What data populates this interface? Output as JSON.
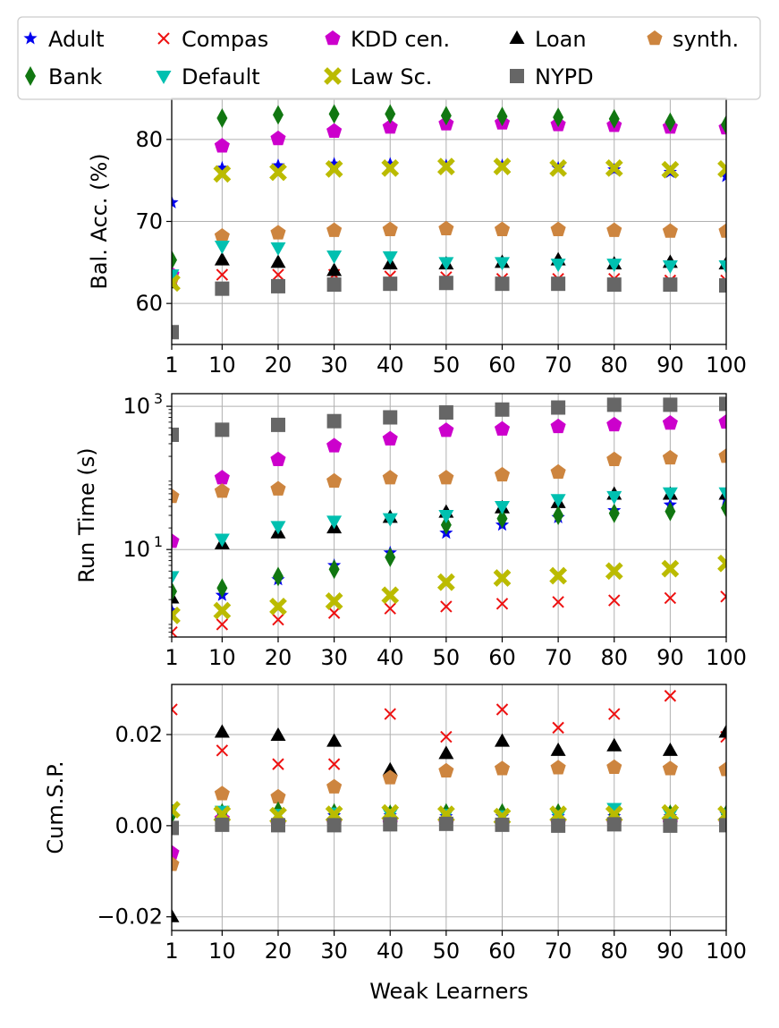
{
  "chart_data": {
    "type": "scatter",
    "x": [
      1,
      10,
      20,
      30,
      40,
      50,
      60,
      70,
      80,
      90,
      100
    ],
    "xticks": [
      "1",
      "10",
      "20",
      "30",
      "40",
      "50",
      "60",
      "70",
      "80",
      "90",
      "100"
    ],
    "xlabel": "Weak Learners",
    "legend": {
      "placement": "top",
      "entries": [
        {
          "key": "adult",
          "label": "Adult",
          "marker": "star",
          "color": "#0000ee"
        },
        {
          "key": "compas",
          "label": "Compas",
          "marker": "x",
          "color": "#ee1111"
        },
        {
          "key": "kdd",
          "label": "KDD cen.",
          "marker": "pentagon",
          "color": "#cc00cc"
        },
        {
          "key": "loan",
          "label": "Loan",
          "marker": "triangle-up",
          "color": "#000000"
        },
        {
          "key": "synth",
          "label": "synth.",
          "marker": "pentagon",
          "color": "#cd853f"
        },
        {
          "key": "bank",
          "label": "Bank",
          "marker": "thin-diamond",
          "color": "#117711"
        },
        {
          "key": "default",
          "label": "Default",
          "marker": "triangle-down",
          "color": "#00c0b0"
        },
        {
          "key": "law",
          "label": "Law Sc.",
          "marker": "x-filled",
          "color": "#bbbb00"
        },
        {
          "key": "nypd",
          "label": "NYPD",
          "marker": "square",
          "color": "#666666"
        }
      ]
    },
    "panels": [
      {
        "id": "acc",
        "ylabel": "Bal. Acc. (%)",
        "yscale": "linear",
        "ylim": [
          55,
          85
        ],
        "yticks": [
          {
            "v": 60,
            "label": "60"
          },
          {
            "v": 70,
            "label": "70"
          },
          {
            "v": 80,
            "label": "80"
          }
        ],
        "series": [
          {
            "key": "adult",
            "values": [
              72.3,
              76.5,
              76.8,
              77.0,
              77.0,
              76.8,
              76.8,
              76.5,
              76.3,
              76.0,
              75.5
            ]
          },
          {
            "key": "compas",
            "values": [
              62.8,
              63.5,
              63.5,
              63.5,
              63.3,
              63.2,
              63.0,
              63.0,
              63.0,
              62.8,
              62.8
            ]
          },
          {
            "key": "kdd",
            "values": [
              63.5,
              79.2,
              80.1,
              81.0,
              81.5,
              81.9,
              82.0,
              81.8,
              81.7,
              81.5,
              81.4
            ]
          },
          {
            "key": "loan",
            "values": [
              62.5,
              65.3,
              65.0,
              64.0,
              64.8,
              64.8,
              65.0,
              65.3,
              64.8,
              65.0,
              64.8
            ]
          },
          {
            "key": "synth",
            "values": [
              63.0,
              68.2,
              68.6,
              68.9,
              69.0,
              69.1,
              69.0,
              69.0,
              68.9,
              68.8,
              68.8
            ]
          },
          {
            "key": "bank",
            "values": [
              65.3,
              82.6,
              83.0,
              83.1,
              83.1,
              82.9,
              82.8,
              82.7,
              82.5,
              82.1,
              81.8
            ]
          },
          {
            "key": "default",
            "values": [
              63.5,
              67.0,
              66.8,
              65.8,
              65.7,
              65.0,
              65.0,
              64.8,
              64.8,
              64.6,
              64.6
            ]
          },
          {
            "key": "law",
            "values": [
              62.5,
              75.8,
              76.0,
              76.4,
              76.5,
              76.7,
              76.7,
              76.5,
              76.5,
              76.3,
              76.4
            ]
          },
          {
            "key": "nypd",
            "values": [
              56.5,
              61.8,
              62.1,
              62.3,
              62.4,
              62.5,
              62.4,
              62.4,
              62.3,
              62.3,
              62.2
            ]
          }
        ]
      },
      {
        "id": "time",
        "ylabel": "Run Time (s)",
        "yscale": "log",
        "ylim": [
          0.6,
          1500
        ],
        "yticks": [
          {
            "v": 10,
            "label": "10",
            "exp": "1"
          },
          {
            "v": 1000,
            "label": "10",
            "exp": "3"
          }
        ],
        "series": [
          {
            "key": "adult",
            "values": [
              1.4,
              2.3,
              3.8,
              6.0,
              9.0,
              17,
              22,
              28,
              35,
              42,
              50
            ]
          },
          {
            "key": "compas",
            "values": [
              0.7,
              0.9,
              1.05,
              1.3,
              1.5,
              1.6,
              1.75,
              1.85,
              1.95,
              2.1,
              2.2
            ]
          },
          {
            "key": "kdd",
            "values": [
              13,
              100,
              180,
              280,
              350,
              460,
              480,
              520,
              550,
              580,
              600
            ]
          },
          {
            "key": "loan",
            "values": [
              2.1,
              12,
              17,
              20,
              28,
              33,
              38,
              45,
              59,
              59,
              59
            ]
          },
          {
            "key": "synth",
            "values": [
              55,
              65,
              70,
              90,
              100,
              100,
              110,
              120,
              180,
              190,
              200
            ]
          },
          {
            "key": "bank",
            "values": [
              2.6,
              2.9,
              4.2,
              5.3,
              7.8,
              22,
              27,
              30,
              32,
              34,
              38
            ]
          },
          {
            "key": "default",
            "values": [
              4.2,
              14,
              21,
              25,
              27,
              30,
              40,
              50,
              55,
              62,
              62
            ]
          },
          {
            "key": "law",
            "values": [
              1.2,
              1.4,
              1.6,
              1.9,
              2.3,
              3.5,
              4.0,
              4.3,
              5.0,
              5.4,
              6.4
            ]
          },
          {
            "key": "nypd",
            "values": [
              400,
              470,
              550,
              620,
              700,
              820,
              900,
              960,
              1050,
              1050,
              1080
            ]
          }
        ]
      },
      {
        "id": "sp",
        "ylabel": "Cum.S.P.",
        "yscale": "linear",
        "ylim": [
          -0.023,
          0.031
        ],
        "yticks": [
          {
            "v": -0.02,
            "label": "−0.02"
          },
          {
            "v": 0,
            "label": "0.00"
          },
          {
            "v": 0.02,
            "label": "0.02"
          }
        ],
        "series": [
          {
            "key": "adult",
            "values": [
              0.0002,
              0.0028,
              0.0025,
              0.0022,
              0.0022,
              0.002,
              0.002,
              0.002,
              0.002,
              0.002,
              0.0025
            ]
          },
          {
            "key": "compas",
            "values": [
              0.0255,
              0.0165,
              0.0135,
              0.0135,
              0.0245,
              0.0195,
              0.0255,
              0.0215,
              0.0245,
              0.0285,
              0.0195
            ]
          },
          {
            "key": "kdd",
            "values": [
              -0.006,
              0.0015,
              0.0002,
              0.0005,
              0.0005,
              0.0005,
              0.0005,
              0.0005,
              0.0005,
              0.0005,
              0.0005
            ]
          },
          {
            "key": "loan",
            "values": [
              -0.02,
              0.0205,
              0.0198,
              0.0185,
              0.0122,
              0.0158,
              0.0185,
              0.0165,
              0.0175,
              0.0165,
              0.0205
            ]
          },
          {
            "key": "synth",
            "values": [
              -0.0085,
              0.007,
              0.0063,
              0.0085,
              0.0105,
              0.012,
              0.0125,
              0.0127,
              0.0128,
              0.0125,
              0.0123
            ]
          },
          {
            "key": "bank",
            "values": [
              0.0025,
              0.0028,
              0.0032,
              0.0028,
              0.0025,
              0.0028,
              0.0028,
              0.0028,
              0.0025,
              0.0025,
              0.0025
            ]
          },
          {
            "key": "default",
            "values": [
              0.0035,
              0.0032,
              0.0025,
              0.0028,
              0.0025,
              0.0025,
              0.0022,
              0.0022,
              0.0038,
              0.0025,
              0.0025
            ]
          },
          {
            "key": "law",
            "values": [
              0.0035,
              0.0025,
              0.0022,
              0.0025,
              0.0028,
              0.0025,
              0.002,
              0.0025,
              0.0025,
              0.0028,
              0.0025
            ]
          },
          {
            "key": "nypd",
            "values": [
              -0.0005,
              0.0002,
              0.0001,
              0.0001,
              0.0003,
              0.0004,
              0.0002,
              0.0,
              0.0003,
              0.0,
              0.0001
            ]
          }
        ]
      }
    ]
  }
}
